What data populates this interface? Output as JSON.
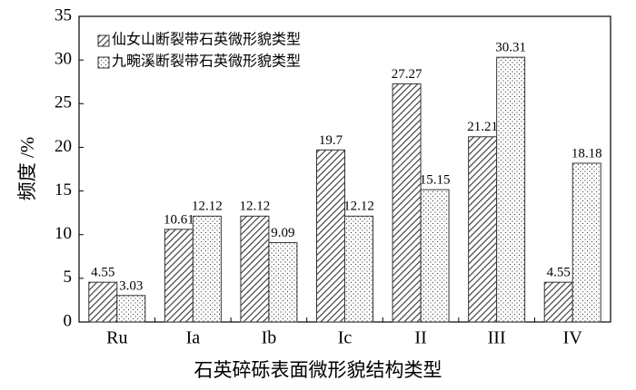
{
  "chart_data": {
    "type": "bar",
    "x_label": "石英碎砾表面微形貌结构类型",
    "y_label": "频度 /%",
    "categories": [
      "Ru",
      "Ia",
      "Ib",
      "Ic",
      "II",
      "III",
      "IV"
    ],
    "series": [
      {
        "name": "仙女山断裂带石英微形貌类型",
        "color": "#333333",
        "pattern": "hatch",
        "values": [
          4.55,
          10.61,
          12.12,
          19.7,
          27.27,
          21.21,
          4.55
        ]
      },
      {
        "name": "九畹溪断裂带石英微形貌类型",
        "color": "#333333",
        "pattern": "dots",
        "values": [
          3.03,
          12.12,
          9.09,
          12.12,
          15.15,
          30.31,
          18.18
        ]
      }
    ],
    "ylim": [
      0,
      35
    ],
    "yticks": [
      0,
      5,
      10,
      15,
      20,
      25,
      30,
      35
    ],
    "legend": "upper-left"
  }
}
